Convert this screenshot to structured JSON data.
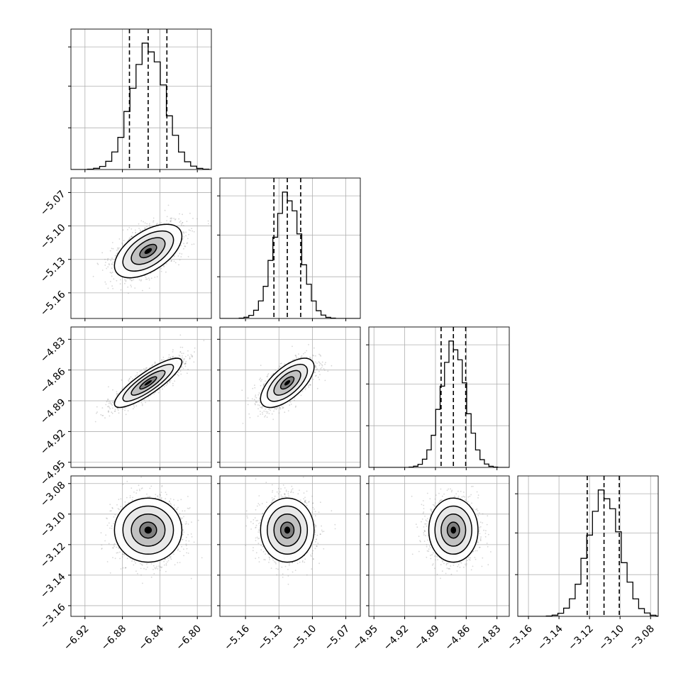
{
  "chart_data": {
    "type": "corner",
    "colors": {
      "axis": "#000000",
      "grid": "#b0b0b0",
      "contour": "#000000",
      "points": "#8c8c8c",
      "quantile_line": "#000000"
    },
    "parameters": [
      {
        "range": [
          -6.935,
          -6.785
        ],
        "ticks": [
          -6.92,
          -6.88,
          -6.84,
          -6.8
        ],
        "tick_labels": [
          "−6.92",
          "−6.88",
          "−6.84",
          "−6.80"
        ],
        "mean": -6.8525,
        "sigma": 0.018,
        "quantiles": [
          -6.8725,
          -6.8525,
          -6.8325
        ]
      },
      {
        "range": [
          -5.183,
          -5.057
        ],
        "ticks": [
          -5.16,
          -5.13,
          -5.1,
          -5.07
        ],
        "tick_labels": [
          "−5.16",
          "−5.13",
          "−5.10",
          "−5.07"
        ],
        "mean": -5.1225,
        "sigma": 0.012,
        "quantiles": [
          -5.1345,
          -5.1225,
          -5.1105
        ]
      },
      {
        "range": [
          -4.955,
          -4.818
        ],
        "ticks": [
          -4.95,
          -4.92,
          -4.89,
          -4.86,
          -4.83
        ],
        "tick_labels": [
          "−4.95",
          "−4.92",
          "−4.89",
          "−4.86",
          "−4.83"
        ],
        "mean": -4.8725,
        "sigma": 0.012,
        "quantiles": [
          -4.8845,
          -4.8725,
          -4.8605
        ]
      },
      {
        "range": [
          -3.167,
          -3.075
        ],
        "ticks": [
          -3.16,
          -3.14,
          -3.12,
          -3.1,
          -3.08
        ],
        "tick_labels": [
          "−3.16",
          "−3.14",
          "−3.12",
          "−3.10",
          "−3.08"
        ],
        "mean": -3.1105,
        "sigma": 0.0105,
        "quantiles": [
          -3.1215,
          -3.1105,
          -3.1005
        ]
      }
    ],
    "correlations": [
      [
        1.0,
        0.55,
        0.85,
        0.0
      ],
      [
        0.55,
        1.0,
        0.65,
        0.0
      ],
      [
        0.85,
        0.65,
        1.0,
        0.0
      ],
      [
        0.0,
        0.0,
        0.0,
        1.0
      ]
    ],
    "histogram_bins": 20,
    "contour_levels_sigma": [
      0.5,
      1.0,
      1.5,
      2.0
    ],
    "grid": true,
    "x_tick_rotation_deg": 45
  }
}
